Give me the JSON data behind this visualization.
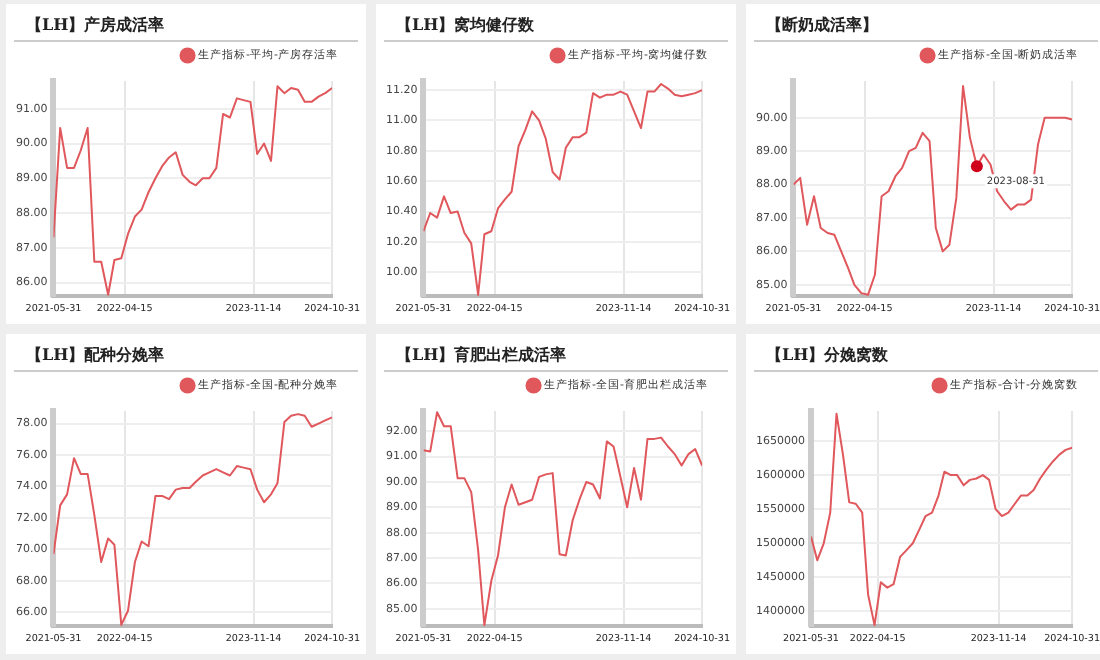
{
  "chart_data": [
    {
      "type": "line",
      "title": "【LH】产房成活率",
      "x": [
        "2021-05-31",
        "2021-06-30",
        "2021-07-31",
        "2021-08-31",
        "2021-09-30",
        "2021-10-31",
        "2021-11-30",
        "2021-12-31",
        "2022-01-31",
        "2022-02-28",
        "2022-03-31",
        "2022-04-30",
        "2022-05-31",
        "2022-06-30",
        "2022-07-31",
        "2022-08-31",
        "2022-09-30",
        "2022-10-31",
        "2022-11-30",
        "2022-12-31",
        "2023-01-31",
        "2023-02-28",
        "2023-03-31",
        "2023-04-30",
        "2023-05-31",
        "2023-06-30",
        "2023-07-31",
        "2023-08-31",
        "2023-09-30",
        "2023-10-31",
        "2023-11-30",
        "2023-12-31",
        "2024-01-31",
        "2024-02-29",
        "2024-03-31",
        "2024-04-30",
        "2024-05-31",
        "2024-06-30",
        "2024-07-31",
        "2024-08-31",
        "2024-09-30",
        "2024-10-31"
      ],
      "series": [
        {
          "name": "生产指标-平均-产房存活率",
          "color": "#e0575c",
          "values": [
            87.3,
            90.45,
            89.3,
            89.3,
            89.8,
            90.45,
            86.6,
            86.6,
            85.65,
            86.65,
            86.7,
            87.4,
            87.9,
            88.1,
            88.6,
            89.0,
            89.35,
            89.6,
            89.75,
            89.1,
            88.9,
            88.8,
            89.0,
            89.0,
            89.3,
            90.85,
            90.75,
            91.3,
            91.25,
            91.2,
            89.7,
            90.0,
            89.5,
            91.65,
            91.45,
            91.6,
            91.55,
            91.2,
            91.2,
            91.35,
            91.45,
            91.6
          ]
        }
      ],
      "xlim": [
        "2021-05-31",
        "2024-10-31"
      ],
      "xticks": [
        "2021-05-31",
        "2022-04-15",
        "2023-11-14",
        "2024-10-31"
      ],
      "ylim": [
        85.6,
        91.8
      ],
      "yticks": [
        {
          "value": 86,
          "label": "86.00"
        },
        {
          "value": 87,
          "label": "87.00"
        },
        {
          "value": 88,
          "label": "88.00"
        },
        {
          "value": 89,
          "label": "89.00"
        },
        {
          "value": 90,
          "label": "90.00"
        },
        {
          "value": 91,
          "label": "91.00"
        }
      ],
      "grid": true,
      "legend": "top right",
      "marker": "none",
      "line_style": "solid"
    },
    {
      "type": "line",
      "title": "【LH】窝均健仔数",
      "x": [
        "2021-05-31",
        "2021-06-30",
        "2021-07-31",
        "2021-08-31",
        "2021-09-30",
        "2021-10-31",
        "2021-11-30",
        "2021-12-31",
        "2022-01-31",
        "2022-02-28",
        "2022-03-31",
        "2022-04-30",
        "2022-05-31",
        "2022-06-30",
        "2022-07-31",
        "2022-08-31",
        "2022-09-30",
        "2022-10-31",
        "2022-11-30",
        "2022-12-31",
        "2023-01-31",
        "2023-02-28",
        "2023-03-31",
        "2023-04-30",
        "2023-05-31",
        "2023-06-30",
        "2023-07-31",
        "2023-08-31",
        "2023-09-30",
        "2023-10-31",
        "2023-11-30",
        "2023-12-31",
        "2024-01-31",
        "2024-02-29",
        "2024-03-31",
        "2024-04-30",
        "2024-05-31",
        "2024-06-30",
        "2024-07-31",
        "2024-08-31",
        "2024-09-30",
        "2024-10-31"
      ],
      "series": [
        {
          "name": "生产指标-平均-窝均健仔数",
          "color": "#e0575c",
          "values": [
            10.27,
            10.39,
            10.36,
            10.5,
            10.39,
            10.4,
            10.26,
            10.19,
            9.85,
            10.25,
            10.27,
            10.42,
            10.48,
            10.53,
            10.83,
            10.94,
            11.06,
            11.0,
            10.88,
            10.66,
            10.61,
            10.82,
            10.89,
            10.89,
            10.92,
            11.18,
            11.15,
            11.17,
            11.17,
            11.19,
            11.17,
            11.06,
            10.95,
            11.19,
            11.19,
            11.24,
            11.21,
            11.17,
            11.16,
            11.17,
            11.18,
            11.2
          ]
        }
      ],
      "xlim": [
        "2021-05-31",
        "2024-10-31"
      ],
      "xticks": [
        "2021-05-31",
        "2022-04-15",
        "2023-11-14",
        "2024-10-31"
      ],
      "ylim": [
        9.84,
        11.26
      ],
      "yticks": [
        {
          "value": 10,
          "label": "10.00"
        },
        {
          "value": 10.2,
          "label": "10.20"
        },
        {
          "value": 10.4,
          "label": "10.40"
        },
        {
          "value": 10.6,
          "label": "10.60"
        },
        {
          "value": 10.8,
          "label": "10.80"
        },
        {
          "value": 11,
          "label": "11.00"
        },
        {
          "value": 11.2,
          "label": "11.20"
        }
      ],
      "grid": true,
      "legend": "top right",
      "marker": "none",
      "line_style": "solid"
    },
    {
      "type": "line",
      "title": "【断奶成活率】",
      "x": [
        "2021-05-31",
        "2021-06-30",
        "2021-07-31",
        "2021-08-31",
        "2021-09-30",
        "2021-10-31",
        "2021-11-30",
        "2021-12-31",
        "2022-01-31",
        "2022-02-28",
        "2022-03-31",
        "2022-04-30",
        "2022-05-31",
        "2022-06-30",
        "2022-07-31",
        "2022-08-31",
        "2022-09-30",
        "2022-10-31",
        "2022-11-30",
        "2022-12-31",
        "2023-01-31",
        "2023-02-28",
        "2023-03-31",
        "2023-04-30",
        "2023-05-31",
        "2023-06-30",
        "2023-07-31",
        "2023-08-31",
        "2023-09-30",
        "2023-10-31",
        "2023-11-30",
        "2023-12-31",
        "2024-01-31",
        "2024-02-29",
        "2024-03-31",
        "2024-04-30",
        "2024-05-31",
        "2024-06-30",
        "2024-07-31",
        "2024-08-31",
        "2024-09-30",
        "2024-10-31"
      ],
      "series": [
        {
          "name": "生产指标-全国-断奶成活率",
          "color": "#e0575c",
          "values": [
            88.0,
            88.2,
            86.8,
            87.65,
            86.7,
            86.55,
            86.5,
            86.0,
            85.5,
            85.0,
            84.75,
            84.7,
            85.3,
            87.65,
            87.8,
            88.25,
            88.5,
            89.0,
            89.1,
            89.55,
            89.3,
            86.7,
            86.0,
            86.2,
            87.6,
            90.95,
            89.4,
            88.55,
            88.9,
            88.6,
            87.8,
            87.5,
            87.25,
            87.4,
            87.4,
            87.55,
            89.2,
            90.0,
            90.0,
            90.0,
            90.0,
            89.95
          ]
        }
      ],
      "annotations": [
        {
          "text": "2023-08-31",
          "x": "2023-08-31",
          "y": 88.55
        }
      ],
      "xlim": [
        "2021-05-31",
        "2024-10-31"
      ],
      "xticks": [
        "2021-05-31",
        "2022-04-15",
        "2023-11-14",
        "2024-10-31"
      ],
      "ylim": [
        84.65,
        91.1
      ],
      "yticks": [
        {
          "value": 85,
          "label": "85.00"
        },
        {
          "value": 86,
          "label": "86.00"
        },
        {
          "value": 87,
          "label": "87.00"
        },
        {
          "value": 88,
          "label": "88.00"
        },
        {
          "value": 89,
          "label": "89.00"
        },
        {
          "value": 90,
          "label": "90.00"
        }
      ],
      "grid": true,
      "legend": "top right",
      "marker": "none",
      "line_style": "solid"
    },
    {
      "type": "line",
      "title": "【LH】配种分娩率",
      "x": [
        "2021-05-31",
        "2021-06-30",
        "2021-07-31",
        "2021-08-31",
        "2021-09-30",
        "2021-10-31",
        "2021-11-30",
        "2021-12-31",
        "2022-01-31",
        "2022-02-28",
        "2022-03-31",
        "2022-04-30",
        "2022-05-31",
        "2022-06-30",
        "2022-07-31",
        "2022-08-31",
        "2022-09-30",
        "2022-10-31",
        "2022-11-30",
        "2022-12-31",
        "2023-01-31",
        "2023-02-28",
        "2023-03-31",
        "2023-04-30",
        "2023-05-31",
        "2023-06-30",
        "2023-07-31",
        "2023-08-31",
        "2023-09-30",
        "2023-10-31",
        "2023-11-30",
        "2023-12-31",
        "2024-01-31",
        "2024-02-29",
        "2024-03-31",
        "2024-04-30",
        "2024-05-31",
        "2024-06-30",
        "2024-07-31",
        "2024-08-31",
        "2024-09-30",
        "2024-10-31"
      ],
      "series": [
        {
          "name": "生产指标-全国-配种分娩率",
          "color": "#e0575c",
          "values": [
            69.7,
            72.8,
            73.5,
            75.8,
            74.8,
            74.8,
            72.2,
            69.2,
            70.7,
            70.3,
            65.2,
            66.1,
            69.2,
            70.5,
            70.2,
            73.4,
            73.4,
            73.2,
            73.8,
            73.9,
            73.9,
            74.3,
            74.7,
            74.9,
            75.1,
            74.9,
            74.7,
            75.3,
            75.2,
            75.1,
            73.8,
            73.0,
            73.5,
            74.2,
            78.1,
            78.5,
            78.6,
            78.5,
            77.8,
            78.0,
            78.2,
            78.4
          ]
        }
      ],
      "xlim": [
        "2021-05-31",
        "2024-10-31"
      ],
      "xticks": [
        "2021-05-31",
        "2022-04-15",
        "2023-11-14",
        "2024-10-31"
      ],
      "ylim": [
        65.1,
        78.8
      ],
      "yticks": [
        {
          "value": 66,
          "label": "66.00"
        },
        {
          "value": 68,
          "label": "68.00"
        },
        {
          "value": 70,
          "label": "70.00"
        },
        {
          "value": 72,
          "label": "72.00"
        },
        {
          "value": 74,
          "label": "74.00"
        },
        {
          "value": 76,
          "label": "76.00"
        },
        {
          "value": 78,
          "label": "78.00"
        }
      ],
      "grid": true,
      "legend": "top right",
      "marker": "none",
      "line_style": "solid"
    },
    {
      "type": "line",
      "title": "【LH】育肥出栏成活率",
      "x": [
        "2021-05-31",
        "2021-06-30",
        "2021-07-31",
        "2021-08-31",
        "2021-09-30",
        "2021-10-31",
        "2021-11-30",
        "2021-12-31",
        "2022-01-31",
        "2022-02-28",
        "2022-03-31",
        "2022-04-30",
        "2022-05-31",
        "2022-06-30",
        "2022-07-31",
        "2022-08-31",
        "2022-09-30",
        "2022-10-31",
        "2022-11-30",
        "2022-12-31",
        "2023-01-31",
        "2023-02-28",
        "2023-03-31",
        "2023-04-30",
        "2023-05-31",
        "2023-06-30",
        "2023-07-31",
        "2023-08-31",
        "2023-09-30",
        "2023-10-31",
        "2023-11-30",
        "2023-12-31",
        "2024-01-31",
        "2024-02-29",
        "2024-03-31",
        "2024-04-30",
        "2024-05-31",
        "2024-06-30",
        "2024-07-31",
        "2024-08-31",
        "2024-09-30",
        "2024-10-31"
      ],
      "series": [
        {
          "name": "生产指标-全国-育肥出栏成活率",
          "color": "#e0575c",
          "values": [
            91.25,
            91.2,
            92.75,
            92.2,
            92.2,
            90.15,
            90.15,
            89.6,
            87.3,
            84.35,
            86.1,
            87.1,
            89.0,
            89.9,
            89.1,
            89.2,
            89.3,
            90.2,
            90.3,
            90.35,
            87.15,
            87.1,
            88.5,
            89.3,
            90.0,
            89.9,
            89.35,
            91.6,
            91.4,
            90.2,
            89.0,
            90.55,
            89.3,
            91.7,
            91.7,
            91.75,
            91.4,
            91.1,
            90.65,
            91.1,
            91.3,
            90.65
          ]
        }
      ],
      "xlim": [
        "2021-05-31",
        "2024-10-31"
      ],
      "xticks": [
        "2021-05-31",
        "2022-04-15",
        "2023-11-14",
        "2024-10-31"
      ],
      "ylim": [
        84.3,
        92.8
      ],
      "yticks": [
        {
          "value": 85,
          "label": "85.00"
        },
        {
          "value": 86,
          "label": "86.00"
        },
        {
          "value": 87,
          "label": "87.00"
        },
        {
          "value": 88,
          "label": "88.00"
        },
        {
          "value": 89,
          "label": "89.00"
        },
        {
          "value": 90,
          "label": "90.00"
        },
        {
          "value": 91,
          "label": "91.00"
        },
        {
          "value": 92,
          "label": "92.00"
        }
      ],
      "grid": true,
      "legend": "top right",
      "marker": "none",
      "line_style": "solid"
    },
    {
      "type": "line",
      "title": "【LH】分娩窝数",
      "x": [
        "2021-05-31",
        "2021-06-30",
        "2021-07-31",
        "2021-08-31",
        "2021-09-30",
        "2021-10-31",
        "2021-11-30",
        "2021-12-31",
        "2022-01-31",
        "2022-02-28",
        "2022-03-31",
        "2022-04-30",
        "2022-05-31",
        "2022-06-30",
        "2022-07-31",
        "2022-08-31",
        "2022-09-30",
        "2022-10-31",
        "2022-11-30",
        "2022-12-31",
        "2023-01-31",
        "2023-02-28",
        "2023-03-31",
        "2023-04-30",
        "2023-05-31",
        "2023-06-30",
        "2023-07-31",
        "2023-08-31",
        "2023-09-30",
        "2023-10-31",
        "2023-11-30",
        "2023-12-31",
        "2024-01-31",
        "2024-02-29",
        "2024-03-31",
        "2024-04-30",
        "2024-05-31",
        "2024-06-30",
        "2024-07-31",
        "2024-08-31",
        "2024-09-30",
        "2024-10-31"
      ],
      "series": [
        {
          "name": "生产指标-合计-分娩窝数",
          "color": "#e0575c",
          "values": [
            1510000,
            1475000,
            1500000,
            1545000,
            1690000,
            1630000,
            1560000,
            1558000,
            1545000,
            1425000,
            1380000,
            1443000,
            1435000,
            1440000,
            1480000,
            1490000,
            1500000,
            1520000,
            1540000,
            1545000,
            1570000,
            1605000,
            1600000,
            1600000,
            1585000,
            1593000,
            1595000,
            1600000,
            1593000,
            1550000,
            1540000,
            1545000,
            1558000,
            1570000,
            1570000,
            1578000,
            1595000,
            1608000,
            1620000,
            1630000,
            1637000,
            1640000
          ]
        }
      ],
      "xlim": [
        "2021-05-31",
        "2024-10-31"
      ],
      "xticks": [
        "2021-05-31",
        "2022-04-15",
        "2023-11-14",
        "2024-10-31"
      ],
      "ylim": [
        1378000,
        1694000
      ],
      "yticks": [
        1400000,
        1450000,
        1500000,
        1550000,
        1600000,
        1650000
      ],
      "grid": true,
      "legend": "top right",
      "marker": "none",
      "line_style": "solid"
    }
  ]
}
